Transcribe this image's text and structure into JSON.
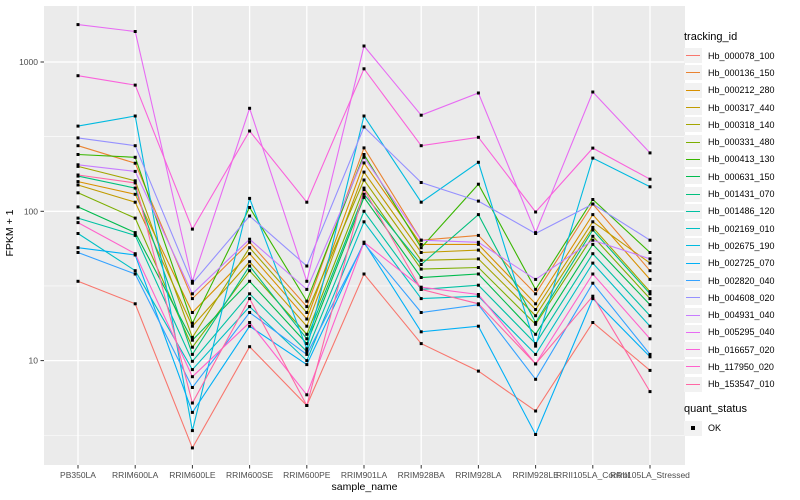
{
  "chart": {
    "x_axis_title": "sample_name",
    "y_axis_title": "FPKM + 1",
    "legend_tracking_title": "tracking_id",
    "legend_quant_title": "quant_status",
    "legend_quant_label": "OK"
  },
  "theme": {
    "panel_bg": "#EBEBEB",
    "grid_color": "#FFFFFF",
    "tick_text_color": "#4D4D4D",
    "axis_tick_color": "#333333",
    "point_color": "#000000",
    "legend_key_bg": "#F2F2F2"
  },
  "chart_data": {
    "type": "line",
    "title": "",
    "xlabel": "sample_name",
    "ylabel": "FPKM + 1",
    "y_scale": "log10",
    "y_ticks": [
      10,
      100,
      1000
    ],
    "y_tick_labels": [
      "10",
      "100",
      "1000"
    ],
    "y_minor_ticks": [
      3.162,
      31.62,
      316.2
    ],
    "ylim": [
      2,
      2400
    ],
    "grid": true,
    "legend_position": "right",
    "point_marker": "small-black-square",
    "categories": [
      "PB350LA",
      "RRIM600LA",
      "RRIM600LE",
      "RRIM600SE",
      "RRIM600PE",
      "RRIM901LA",
      "RRIM928BA",
      "RRIM928LA",
      "RRIM928LE",
      "RRII105LA_Control",
      "RRII105LA_Stressed"
    ],
    "series": [
      {
        "name": "Hb_000078_100",
        "color": "#F8766D",
        "values": [
          34,
          24,
          2.6,
          12.4,
          5,
          38,
          13,
          8.5,
          4.6,
          18,
          8.6
        ]
      },
      {
        "name": "Hb_000136_150",
        "color": "#EA8331",
        "values": [
          275,
          210,
          26,
          62,
          23,
          266,
          64,
          69,
          28,
          112,
          40
        ]
      },
      {
        "name": "Hb_000212_280",
        "color": "#D89000",
        "values": [
          158,
          130,
          21,
          52,
          19,
          211,
          60,
          60,
          24,
          95,
          35
        ]
      },
      {
        "name": "Hb_000317_440",
        "color": "#C09B00",
        "values": [
          150,
          115,
          17,
          46,
          17,
          183,
          53,
          55,
          22,
          85,
          45
        ]
      },
      {
        "name": "Hb_000318_140",
        "color": "#A3A500",
        "values": [
          200,
          160,
          14.3,
          57,
          21,
          162,
          47,
          48,
          20,
          78,
          29
        ]
      },
      {
        "name": "Hb_000331_480",
        "color": "#7CAE00",
        "values": [
          133,
          90,
          12.3,
          40,
          15,
          143,
          41,
          42,
          17.5,
          68,
          26
        ]
      },
      {
        "name": "Hb_000413_130",
        "color": "#39B600",
        "values": [
          240,
          230,
          17.8,
          106,
          25,
          240,
          57,
          152,
          30,
          120,
          53
        ]
      },
      {
        "name": "Hb_000631_150",
        "color": "#00BB4E",
        "values": [
          107,
          72,
          13.7,
          34,
          13,
          124,
          36,
          38,
          15,
          60,
          23.7
        ]
      },
      {
        "name": "Hb_001431_070",
        "color": "#00BF7D",
        "values": [
          172,
          143,
          11,
          43,
          14,
          130,
          44,
          95,
          18,
          75,
          28
        ]
      },
      {
        "name": "Hb_001486_120",
        "color": "#00C1A3",
        "values": [
          90,
          69,
          9.9,
          28,
          11.5,
          100,
          30,
          32,
          13,
          52,
          20
        ]
      },
      {
        "name": "Hb_002169_010",
        "color": "#00BFC4",
        "values": [
          71,
          40,
          8.7,
          23,
          10,
          85,
          26,
          27,
          11,
          45,
          17
        ]
      },
      {
        "name": "Hb_002675_190",
        "color": "#00BAE0",
        "values": [
          372,
          435,
          3.4,
          122,
          12,
          435,
          115,
          213,
          12.5,
          227,
          146
        ]
      },
      {
        "name": "Hb_002725_070",
        "color": "#00B0F6",
        "values": [
          57,
          51,
          4.5,
          17,
          9.4,
          62,
          15.6,
          17,
          3.2,
          26,
          10.6
        ]
      },
      {
        "name": "Hb_002820_040",
        "color": "#35A2FF",
        "values": [
          53,
          38,
          6.6,
          21,
          11,
          61,
          21,
          23.7,
          7.5,
          33,
          11
        ]
      },
      {
        "name": "Hb_004608_020",
        "color": "#9590FF",
        "values": [
          310,
          275,
          33,
          93,
          43,
          367,
          156,
          117,
          71,
          112,
          64
        ]
      },
      {
        "name": "Hb_004931_040",
        "color": "#C77CFF",
        "values": [
          205,
          185,
          28,
          65,
          30,
          230,
          64,
          62,
          35,
          64,
          48
        ]
      },
      {
        "name": "Hb_005295_040",
        "color": "#E76BF3",
        "values": [
          1780,
          1600,
          34,
          490,
          34,
          1280,
          440,
          620,
          72,
          630,
          246
        ]
      },
      {
        "name": "Hb_016657_020",
        "color": "#FA62DB",
        "values": [
          810,
          700,
          76,
          345,
          115,
          900,
          275,
          313,
          99,
          265,
          164
        ]
      },
      {
        "name": "Hb_117950_020",
        "color": "#FF61CC",
        "values": [
          84,
          52,
          7.8,
          18,
          5.9,
          62,
          31,
          27.7,
          9.5,
          38,
          14
        ]
      },
      {
        "name": "Hb_153547_010",
        "color": "#FF67A4",
        "values": [
          175,
          155,
          5.2,
          26,
          5,
          140,
          30,
          24,
          9.5,
          27,
          6.2
        ]
      }
    ],
    "quant_status": {
      "label": "OK",
      "marker": "black-square"
    }
  }
}
